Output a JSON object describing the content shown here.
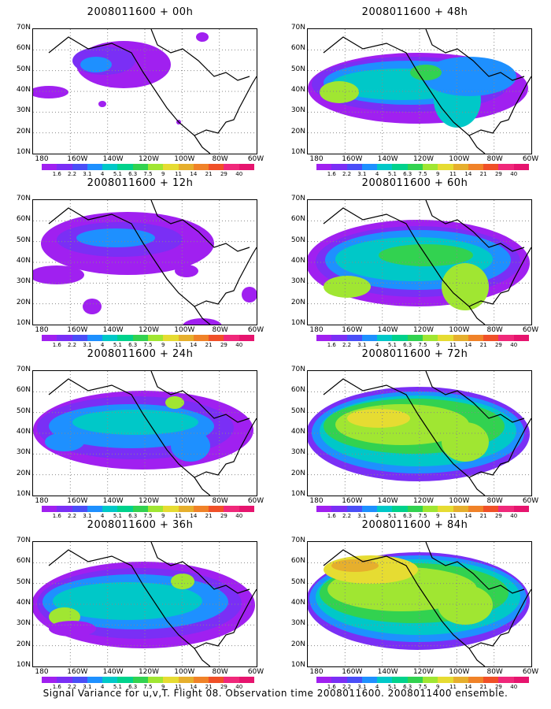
{
  "caption": "Signal Variance for u,v,T. Flight 08. Observation time 2008011600. 2008011400 ensemble.",
  "colorbar": {
    "labels": [
      "1.6",
      "2.2",
      "3.1",
      "4",
      "5.1",
      "6.3",
      "7.5",
      "9",
      "11",
      "14",
      "21",
      "29",
      "40"
    ],
    "colors": [
      "#a020f0",
      "#7a2ff5",
      "#4a4ef7",
      "#1e90ff",
      "#00c8c8",
      "#00d28c",
      "#32d250",
      "#a0e632",
      "#e6dc32",
      "#e6af2d",
      "#f08228",
      "#f05028",
      "#f0287a",
      "#e6146e"
    ]
  },
  "axes": {
    "lat_labels": [
      "10N",
      "20N",
      "30N",
      "40N",
      "50N",
      "60N",
      "70N"
    ],
    "lon_labels": [
      "180",
      "160W",
      "140W",
      "120W",
      "100W",
      "80W",
      "60W"
    ]
  },
  "chart_data": [
    {
      "type": "heatmap",
      "title": "2008011600 + 00h",
      "x": [
        "180",
        "160W",
        "140W",
        "120W",
        "100W",
        "80W",
        "60W"
      ],
      "y": [
        "10N",
        "20N",
        "30N",
        "40N",
        "50N",
        "60N",
        "70N"
      ],
      "colorbar_levels": [
        1.6,
        2.2,
        3.1,
        4,
        5.1,
        6.3,
        7.5,
        9,
        11,
        14,
        21,
        29,
        40
      ]
    },
    {
      "type": "heatmap",
      "title": "2008011600 + 48h",
      "x": [
        "180",
        "160W",
        "140W",
        "120W",
        "100W",
        "80W",
        "60W"
      ],
      "y": [
        "10N",
        "20N",
        "30N",
        "40N",
        "50N",
        "60N",
        "70N"
      ],
      "colorbar_levels": [
        1.6,
        2.2,
        3.1,
        4,
        5.1,
        6.3,
        7.5,
        9,
        11,
        14,
        21,
        29,
        40
      ]
    },
    {
      "type": "heatmap",
      "title": "2008011600 + 12h",
      "x": [
        "180",
        "160W",
        "140W",
        "120W",
        "100W",
        "80W",
        "60W"
      ],
      "y": [
        "10N",
        "20N",
        "30N",
        "40N",
        "50N",
        "60N",
        "70N"
      ],
      "colorbar_levels": [
        1.6,
        2.2,
        3.1,
        4,
        5.1,
        6.3,
        7.5,
        9,
        11,
        14,
        21,
        29,
        40
      ]
    },
    {
      "type": "heatmap",
      "title": "2008011600 + 60h",
      "x": [
        "180",
        "160W",
        "140W",
        "120W",
        "100W",
        "80W",
        "60W"
      ],
      "y": [
        "10N",
        "20N",
        "30N",
        "40N",
        "50N",
        "60N",
        "70N"
      ],
      "colorbar_levels": [
        1.6,
        2.2,
        3.1,
        4,
        5.1,
        6.3,
        7.5,
        9,
        11,
        14,
        21,
        29,
        40
      ]
    },
    {
      "type": "heatmap",
      "title": "2008011600 + 24h",
      "x": [
        "180",
        "160W",
        "140W",
        "120W",
        "100W",
        "80W",
        "60W"
      ],
      "y": [
        "10N",
        "20N",
        "30N",
        "40N",
        "50N",
        "60N",
        "70N"
      ],
      "colorbar_levels": [
        1.6,
        2.2,
        3.1,
        4,
        5.1,
        6.3,
        7.5,
        9,
        11,
        14,
        21,
        29,
        40
      ]
    },
    {
      "type": "heatmap",
      "title": "2008011600 + 72h",
      "x": [
        "180",
        "160W",
        "140W",
        "120W",
        "100W",
        "80W",
        "60W"
      ],
      "y": [
        "10N",
        "20N",
        "30N",
        "40N",
        "50N",
        "60N",
        "70N"
      ],
      "colorbar_levels": [
        1.6,
        2.2,
        3.1,
        4,
        5.1,
        6.3,
        7.5,
        9,
        11,
        14,
        21,
        29,
        40
      ]
    },
    {
      "type": "heatmap",
      "title": "2008011600 + 36h",
      "x": [
        "180",
        "160W",
        "140W",
        "120W",
        "100W",
        "80W",
        "60W"
      ],
      "y": [
        "10N",
        "20N",
        "30N",
        "40N",
        "50N",
        "60N",
        "70N"
      ],
      "colorbar_levels": [
        1.6,
        2.2,
        3.1,
        4,
        5.1,
        6.3,
        7.5,
        9,
        11,
        14,
        21,
        29,
        40
      ]
    },
    {
      "type": "heatmap",
      "title": "2008011600 + 84h",
      "x": [
        "180",
        "160W",
        "140W",
        "120W",
        "100W",
        "80W",
        "60W"
      ],
      "y": [
        "10N",
        "20N",
        "30N",
        "40N",
        "50N",
        "60N",
        "70N"
      ],
      "colorbar_levels": [
        1.6,
        2.2,
        3.1,
        4,
        5.1,
        6.3,
        7.5,
        9,
        11,
        14,
        21,
        29,
        40
      ]
    }
  ]
}
